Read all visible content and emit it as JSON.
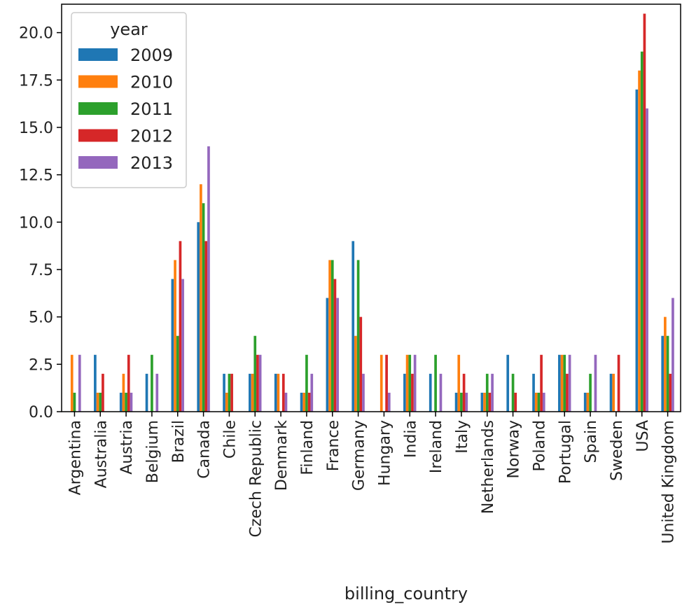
{
  "chart_data": {
    "type": "bar",
    "title": "",
    "xlabel": "billing_country",
    "ylabel": "",
    "ylim": [
      0,
      21.5
    ],
    "yticks": [
      "0.0",
      "2.5",
      "5.0",
      "7.5",
      "10.0",
      "12.5",
      "15.0",
      "17.5",
      "20.0"
    ],
    "grid": false,
    "legend": {
      "title": "year",
      "placement": "top-left"
    },
    "categories": [
      "Argentina",
      "Australia",
      "Austria",
      "Belgium",
      "Brazil",
      "Canada",
      "Chile",
      "Czech Republic",
      "Denmark",
      "Finland",
      "France",
      "Germany",
      "Hungary",
      "India",
      "Ireland",
      "Italy",
      "Netherlands",
      "Norway",
      "Poland",
      "Portugal",
      "Spain",
      "Sweden",
      "USA",
      "United Kingdom"
    ],
    "series": [
      {
        "name": "2009",
        "color": "#1f77b4",
        "values": [
          0,
          3,
          1,
          2,
          7,
          10,
          2,
          2,
          2,
          1,
          6,
          9,
          0,
          2,
          2,
          1,
          1,
          3,
          2,
          3,
          1,
          2,
          17,
          4
        ]
      },
      {
        "name": "2010",
        "color": "#ff7f0e",
        "values": [
          3,
          1,
          2,
          0,
          8,
          12,
          1,
          2,
          2,
          1,
          8,
          4,
          3,
          3,
          0,
          3,
          1,
          0,
          1,
          3,
          1,
          2,
          18,
          5
        ]
      },
      {
        "name": "2011",
        "color": "#2ca02c",
        "values": [
          1,
          1,
          1,
          3,
          4,
          11,
          2,
          4,
          0,
          3,
          8,
          8,
          0,
          3,
          3,
          1,
          2,
          2,
          1,
          3,
          2,
          0,
          19,
          4
        ]
      },
      {
        "name": "2012",
        "color": "#d62728",
        "values": [
          0,
          2,
          3,
          0,
          9,
          9,
          2,
          3,
          2,
          1,
          7,
          5,
          3,
          2,
          0,
          2,
          1,
          1,
          3,
          2,
          0,
          3,
          21,
          2
        ]
      },
      {
        "name": "2013",
        "color": "#9467bd",
        "values": [
          3,
          0,
          1,
          2,
          7,
          14,
          0,
          3,
          1,
          2,
          6,
          2,
          1,
          3,
          2,
          1,
          2,
          0,
          1,
          3,
          3,
          0,
          16,
          6
        ]
      }
    ]
  }
}
